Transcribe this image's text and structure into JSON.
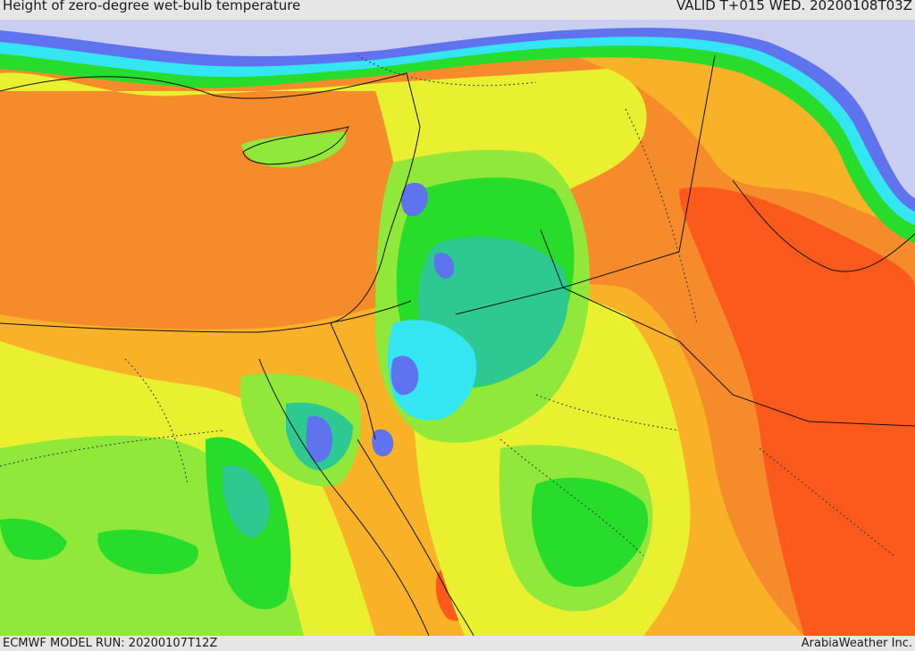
{
  "header": {
    "title": "Height of zero-degree wet-bulb temperature",
    "valid": "VALID T+015 WED. 20200108T03Z"
  },
  "footer": {
    "model_run": "ECMWF MODEL RUN: 20200107T12Z",
    "credit": "ArabiaWeather Inc."
  },
  "palette": {
    "lowest": "#c9cdf0",
    "low_blue": "#5f73ee",
    "cyan": "#33e6f2",
    "teal": "#2ec992",
    "green": "#27dc2a",
    "light_green": "#8fe83a",
    "yellow": "#e9f02f",
    "light_orange": "#f9b128",
    "orange": "#f58b2a",
    "red_orange": "#fb5a1c"
  }
}
